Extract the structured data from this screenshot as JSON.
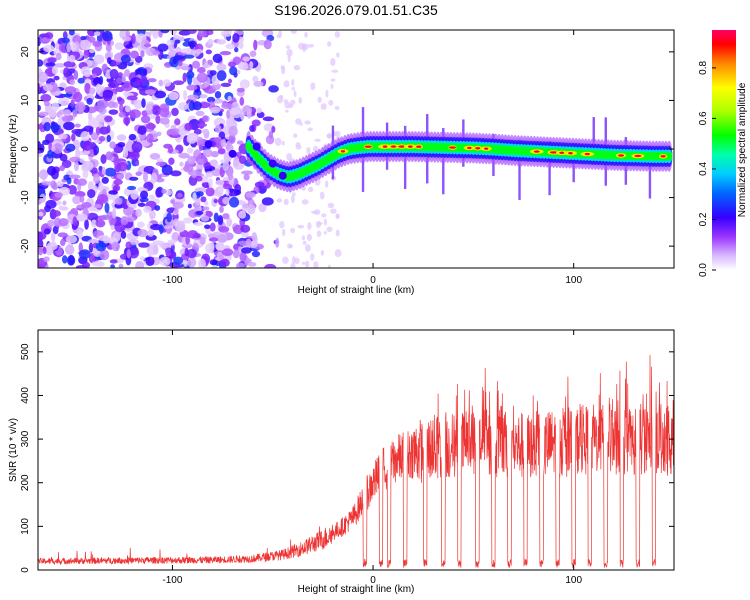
{
  "figure": {
    "title": "S196.2026.079.01.51.C35"
  },
  "chart_data": [
    {
      "type": "heatmap",
      "title": "S196.2026.079.01.51.C35",
      "xlabel": "Height of straight line (km)",
      "ylabel": "Frequency (Hz)",
      "xlim": [
        -167,
        150
      ],
      "ylim": [
        -24.5,
        24.5
      ],
      "x_ticks": [
        -100,
        0,
        100
      ],
      "y_ticks": [
        -20,
        -10,
        0,
        10,
        20
      ],
      "colorbar": {
        "label": "Normalized spectral amplitude",
        "range": [
          0,
          0.95
        ],
        "ticks": [
          0.0,
          0.2,
          0.4,
          0.6,
          0.8
        ]
      },
      "ridge": {
        "x": [
          -62,
          -57,
          -52,
          -47,
          -42,
          -37,
          -32,
          -27,
          -22,
          -17,
          -12,
          -7,
          -2,
          3,
          10,
          20,
          30,
          40,
          50,
          60,
          70,
          80,
          90,
          100,
          110,
          120,
          130,
          140,
          148
        ],
        "y": [
          0.5,
          -2.0,
          -4.0,
          -5.2,
          -5.8,
          -5.2,
          -4.2,
          -3.2,
          -2.0,
          -0.8,
          0.0,
          0.3,
          0.5,
          0.5,
          0.5,
          0.5,
          0.4,
          0.3,
          0.2,
          0.0,
          -0.3,
          -0.5,
          -0.7,
          -0.9,
          -1.1,
          -1.3,
          -1.4,
          -1.5,
          -1.5
        ]
      }
    },
    {
      "type": "line",
      "xlabel": "Height of straight line (km)",
      "ylabel": "SNR (10 * v/v)",
      "xlim": [
        -167,
        150
      ],
      "ylim": [
        0,
        550
      ],
      "x_ticks": [
        -100,
        0,
        100
      ],
      "y_ticks": [
        0,
        100,
        200,
        300,
        400,
        500
      ],
      "color": "#ee3333",
      "envelope": {
        "x": [
          -167,
          -120,
          -80,
          -60,
          -45,
          -35,
          -25,
          -15,
          -10,
          -5,
          0,
          5,
          10,
          20,
          30,
          40,
          50,
          60,
          70,
          80,
          90,
          100,
          110,
          120,
          130,
          140,
          150
        ],
        "y": [
          20,
          22,
          23,
          26,
          35,
          50,
          70,
          100,
          120,
          160,
          200,
          230,
          250,
          270,
          280,
          285,
          290,
          290,
          285,
          285,
          290,
          295,
          300,
          300,
          295,
          310,
          280
        ]
      },
      "dropouts_x": [
        -4,
        4,
        8,
        16,
        26,
        35,
        43,
        52,
        60,
        68,
        76,
        84,
        92,
        100,
        108,
        116,
        124,
        132,
        140
      ]
    }
  ]
}
